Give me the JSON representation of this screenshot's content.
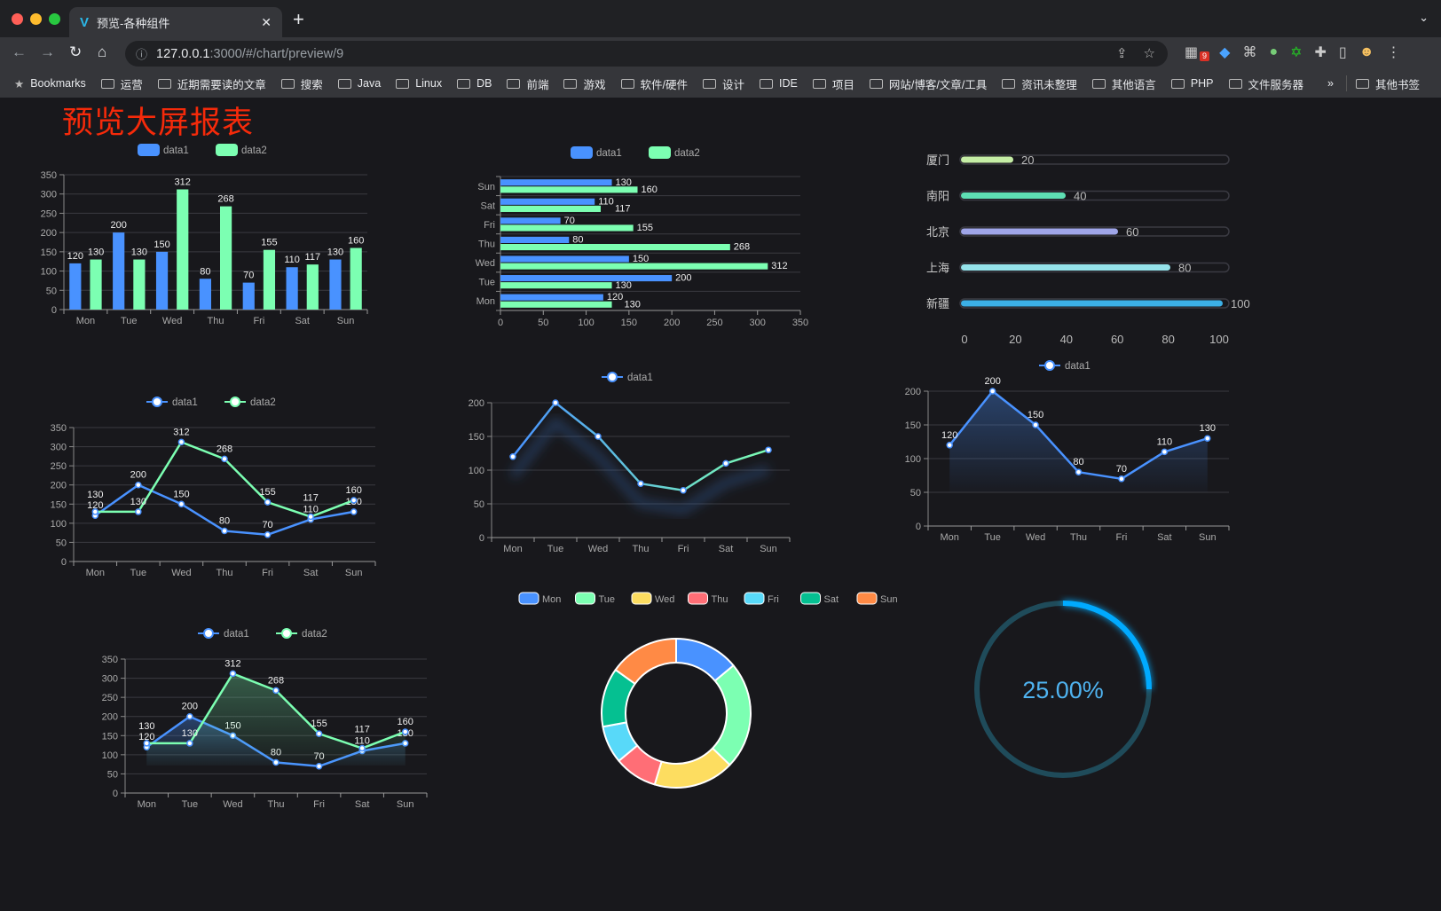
{
  "browser": {
    "tab_title": "预览-各种组件",
    "url_host": "127.0.0.1",
    "url_rest": ":3000/#/chart/preview/9",
    "extension_badge": "9",
    "bookmarks_label": "Bookmarks",
    "bookmarks": [
      "运营",
      "近期需要读的文章",
      "搜索",
      "Java",
      "Linux",
      "DB",
      "前端",
      "游戏",
      "软件/硬件",
      "设计",
      "IDE",
      "项目",
      "网站/博客/文章/工具",
      "资讯未整理",
      "其他语言",
      "PHP",
      "文件服务器"
    ],
    "more": "»",
    "other_bookmarks": "其他书签"
  },
  "page": {
    "title": "预览大屏报表"
  },
  "colors": {
    "data1": "#4992ff",
    "data2": "#7cffb2",
    "background": "#18181c",
    "title": "#f52a0a"
  },
  "chart_data": [
    {
      "type": "bar",
      "legend": [
        "data1",
        "data2"
      ],
      "categories": [
        "Mon",
        "Tue",
        "Wed",
        "Thu",
        "Fri",
        "Sat",
        "Sun"
      ],
      "series": [
        {
          "name": "data1",
          "values": [
            120,
            200,
            150,
            80,
            70,
            110,
            130
          ]
        },
        {
          "name": "data2",
          "values": [
            130,
            130,
            312,
            268,
            155,
            117,
            160
          ]
        }
      ],
      "ylim": [
        0,
        350
      ],
      "yticks": [
        0,
        50,
        100,
        150,
        200,
        250,
        300,
        350
      ],
      "grid": true,
      "legend_position": "top"
    },
    {
      "type": "bar",
      "orientation": "horizontal",
      "legend": [
        "data1",
        "data2"
      ],
      "categories": [
        "Mon",
        "Tue",
        "Wed",
        "Thu",
        "Fri",
        "Sat",
        "Sun"
      ],
      "series": [
        {
          "name": "data1",
          "values": [
            120,
            200,
            150,
            80,
            70,
            110,
            130
          ]
        },
        {
          "name": "data2",
          "values": [
            130,
            130,
            312,
            268,
            155,
            117,
            160
          ]
        }
      ],
      "xlim": [
        0,
        350
      ],
      "xticks": [
        0,
        50,
        100,
        150,
        200,
        250,
        300,
        350
      ],
      "grid": true,
      "legend_position": "top"
    },
    {
      "type": "bar",
      "orientation": "horizontal",
      "style": "progress",
      "categories": [
        "厦门",
        "南阳",
        "北京",
        "上海",
        "新疆"
      ],
      "values": [
        20,
        40,
        60,
        80,
        100
      ],
      "colors": [
        "#c5eda5",
        "#5ee0b4",
        "#9fa5e8",
        "#95e2ea",
        "#3cb0e6"
      ],
      "xlim": [
        0,
        100
      ],
      "xticks": [
        0,
        20,
        40,
        60,
        80,
        100
      ]
    },
    {
      "type": "line",
      "legend": [
        "data1",
        "data2"
      ],
      "categories": [
        "Mon",
        "Tue",
        "Wed",
        "Thu",
        "Fri",
        "Sat",
        "Sun"
      ],
      "series": [
        {
          "name": "data1",
          "values": [
            120,
            200,
            150,
            80,
            70,
            110,
            130
          ]
        },
        {
          "name": "data2",
          "values": [
            130,
            130,
            312,
            268,
            155,
            117,
            160
          ]
        }
      ],
      "ylim": [
        0,
        350
      ],
      "yticks": [
        0,
        50,
        100,
        150,
        200,
        250,
        300,
        350
      ],
      "grid": true,
      "legend_position": "top"
    },
    {
      "type": "line",
      "legend": [
        "data1"
      ],
      "categories": [
        "Mon",
        "Tue",
        "Wed",
        "Thu",
        "Fri",
        "Sat",
        "Sun"
      ],
      "series": [
        {
          "name": "data1",
          "values": [
            120,
            200,
            150,
            80,
            70,
            110,
            130
          ]
        }
      ],
      "ylim": [
        0,
        200
      ],
      "yticks": [
        0,
        50,
        100,
        150,
        200
      ],
      "grid": true,
      "legend_position": "top",
      "line_gradient": [
        "#4992ff",
        "#7cffb2"
      ]
    },
    {
      "type": "area",
      "legend": [
        "data1"
      ],
      "categories": [
        "Mon",
        "Tue",
        "Wed",
        "Thu",
        "Fri",
        "Sat",
        "Sun"
      ],
      "series": [
        {
          "name": "data1",
          "values": [
            120,
            200,
            150,
            80,
            70,
            110,
            130
          ]
        }
      ],
      "ylim": [
        0,
        200
      ],
      "yticks": [
        0,
        50,
        100,
        150,
        200
      ],
      "grid": true,
      "legend_position": "top"
    },
    {
      "type": "area",
      "legend": [
        "data1",
        "data2"
      ],
      "categories": [
        "Mon",
        "Tue",
        "Wed",
        "Thu",
        "Fri",
        "Sat",
        "Sun"
      ],
      "series": [
        {
          "name": "data1",
          "values": [
            120,
            200,
            150,
            80,
            70,
            110,
            130
          ]
        },
        {
          "name": "data2",
          "values": [
            130,
            130,
            312,
            268,
            155,
            117,
            160
          ]
        }
      ],
      "ylim": [
        0,
        350
      ],
      "yticks": [
        0,
        50,
        100,
        150,
        200,
        250,
        300,
        350
      ],
      "grid": true,
      "legend_position": "top"
    },
    {
      "type": "pie",
      "style": "donut",
      "legend_position": "top",
      "categories": [
        "Mon",
        "Tue",
        "Wed",
        "Thu",
        "Fri",
        "Sat",
        "Sun"
      ],
      "values": [
        120,
        200,
        150,
        80,
        70,
        110,
        130
      ],
      "colors": [
        "#4992ff",
        "#7cffb2",
        "#fddd60",
        "#ff6e76",
        "#58d9f9",
        "#05c091",
        "#ff8a45"
      ]
    },
    {
      "type": "gauge",
      "value": 25,
      "label": "25.00%",
      "color": "#00aaff",
      "track_color": "#1f4b5a"
    }
  ]
}
